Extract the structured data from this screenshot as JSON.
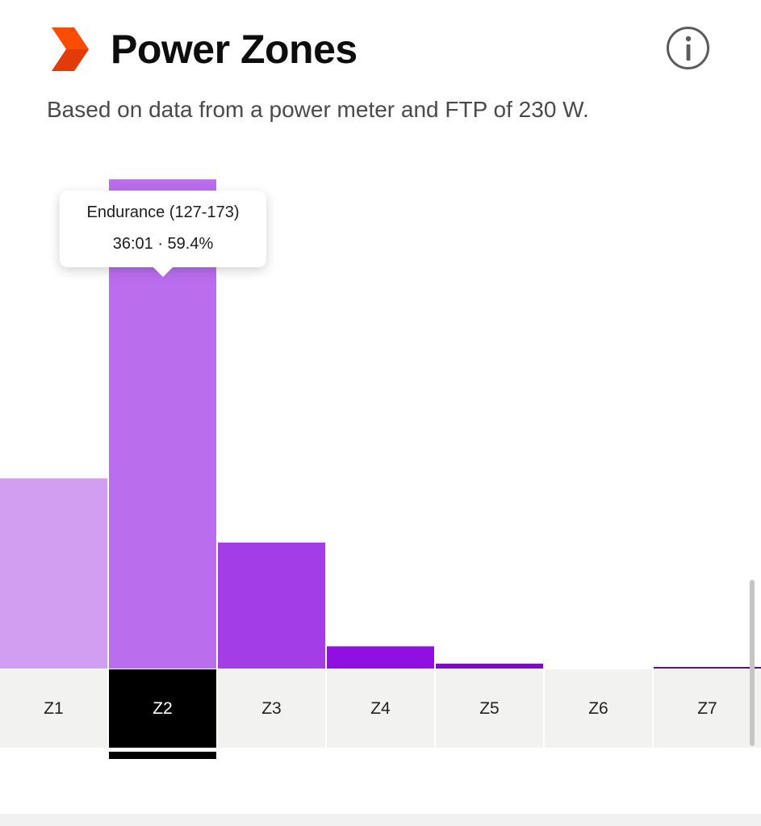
{
  "header": {
    "title": "Power Zones",
    "subtitle": "Based on data from a power meter and FTP of 230 W.",
    "logo_icon": "strava-chevron-icon",
    "logo_color": "#fc4c02",
    "info_icon": "info-icon"
  },
  "chart_data": {
    "type": "bar",
    "categories": [
      "Z1",
      "Z2",
      "Z3",
      "Z4",
      "Z5",
      "Z6",
      "Z7"
    ],
    "values": [
      23.1,
      59.4,
      15.3,
      2.7,
      0.6,
      0.0,
      0.1
    ],
    "colors": [
      "#d29ef1",
      "#ba6ded",
      "#a33de6",
      "#9110e1",
      "#7d0bc3",
      "#6f0aa9",
      "#5c0e80"
    ],
    "ylim": [
      0,
      60
    ],
    "selected_index": 1,
    "tooltip": {
      "title": "Endurance (127-173)",
      "value": "36:01 · 59.4%"
    }
  }
}
